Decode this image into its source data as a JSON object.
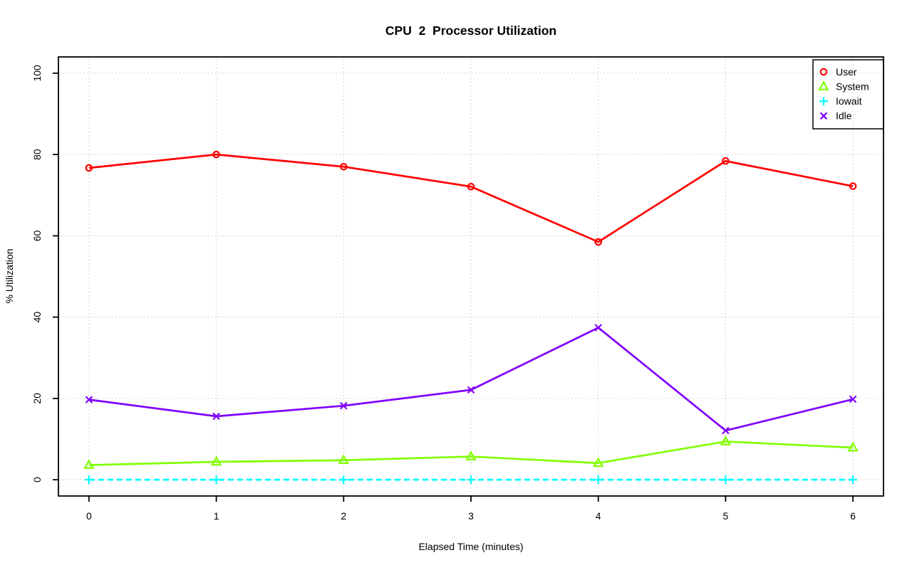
{
  "chart_data": {
    "type": "line",
    "title": "CPU  2  Processor Utilization",
    "xlabel": "Elapsed Time (minutes)",
    "ylabel": "% Utilization",
    "x": [
      0,
      1,
      2,
      3,
      4,
      5,
      6
    ],
    "x_ticks": [
      0,
      1,
      2,
      3,
      4,
      5,
      6
    ],
    "y_ticks": [
      0,
      20,
      40,
      60,
      80,
      100
    ],
    "xlim": [
      -0.24,
      6.24
    ],
    "ylim": [
      -4,
      104
    ],
    "grid": true,
    "grid_style": "dotted",
    "legend_position": "top-right",
    "series": [
      {
        "name": "User",
        "color": "#FF0000",
        "marker": "circle",
        "line_style": "solid",
        "values": [
          76.7,
          80.0,
          77.0,
          72.1,
          58.5,
          78.4,
          72.2
        ]
      },
      {
        "name": "System",
        "color": "#80FF00",
        "marker": "triangle",
        "line_style": "solid",
        "values": [
          3.6,
          4.4,
          4.8,
          5.7,
          4.1,
          9.4,
          7.9
        ]
      },
      {
        "name": "Iowait",
        "color": "#00FFFF",
        "marker": "plus",
        "line_style": "dashed",
        "values": [
          0,
          0,
          0,
          0,
          0,
          0,
          0
        ]
      },
      {
        "name": "Idle",
        "color": "#8000FF",
        "marker": "x",
        "line_style": "solid",
        "values": [
          19.7,
          15.6,
          18.2,
          22.1,
          37.4,
          12.1,
          19.8
        ]
      }
    ]
  },
  "colors": {
    "background": "#ffffff",
    "grid": "#d3d3d3",
    "axis": "#000000"
  }
}
